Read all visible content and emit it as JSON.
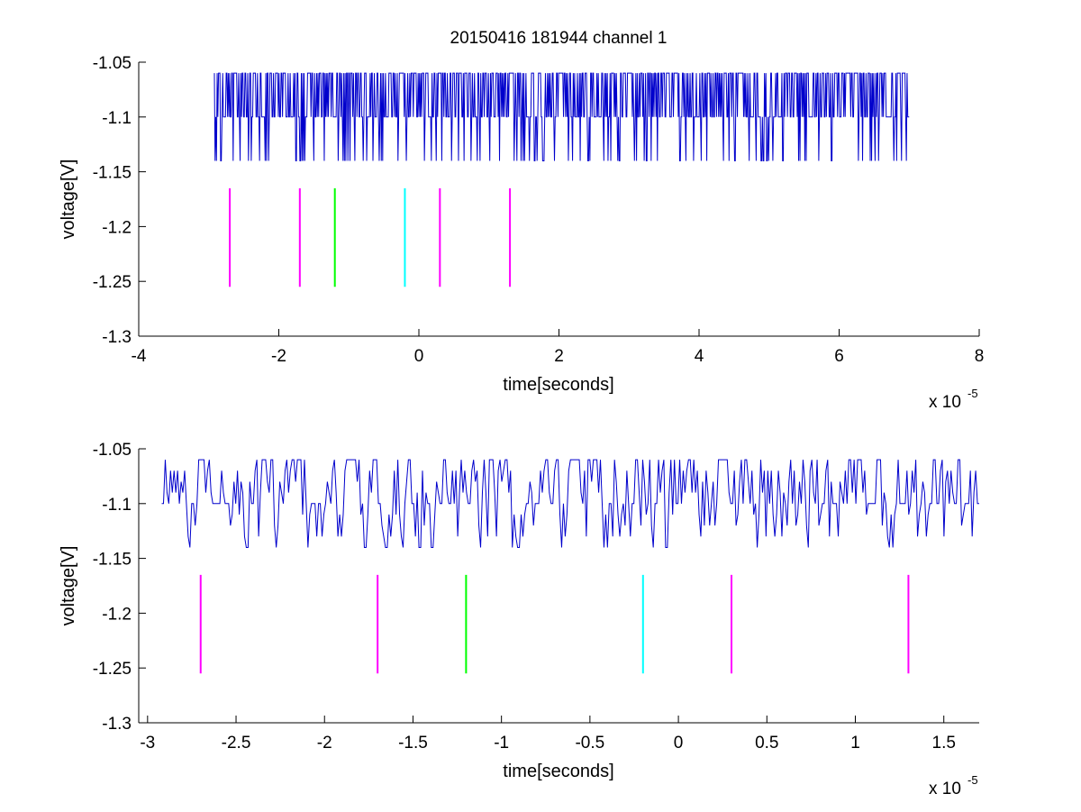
{
  "title": "20150416 181944 channel 1",
  "chart_data": [
    {
      "type": "line",
      "xlabel": "time[seconds]",
      "ylabel": "voltage[V]",
      "x_exponent_label": "x 10",
      "x_exponent": "-5",
      "xlim": [
        -4,
        8
      ],
      "ylim": [
        -1.3,
        -1.05
      ],
      "xticks": [
        -4,
        -2,
        0,
        2,
        4,
        6,
        8
      ],
      "xtick_labels": [
        "-4",
        "-2",
        "0",
        "2",
        "4",
        "6",
        "8"
      ],
      "yticks": [
        -1.05,
        -1.1,
        -1.15,
        -1.2,
        -1.25,
        -1.3
      ],
      "ytick_labels": [
        "-1.05",
        "-1.1",
        "-1.15",
        "-1.2",
        "-1.25",
        "-1.3"
      ],
      "grid": false,
      "signal": {
        "color": "#0000cc",
        "x_start": -2.92,
        "x_end": 7.0,
        "n_points": 1000,
        "levels": [
          -1.06,
          -1.1,
          -1.14
        ],
        "base": -1.1,
        "seed": 7
      },
      "markers": [
        {
          "x": -2.7,
          "y_range": [
            -1.255,
            -1.165
          ],
          "color": "#ff00ff"
        },
        {
          "x": -1.7,
          "y_range": [
            -1.255,
            -1.165
          ],
          "color": "#ff00ff"
        },
        {
          "x": -1.2,
          "y_range": [
            -1.255,
            -1.165
          ],
          "color": "#00ff00"
        },
        {
          "x": -0.2,
          "y_range": [
            -1.255,
            -1.165
          ],
          "color": "#00ffff"
        },
        {
          "x": 0.3,
          "y_range": [
            -1.255,
            -1.165
          ],
          "color": "#ff00ff"
        },
        {
          "x": 1.3,
          "y_range": [
            -1.255,
            -1.165
          ],
          "color": "#ff00ff"
        }
      ]
    },
    {
      "type": "line",
      "xlabel": "time[seconds]",
      "ylabel": "voltage[V]",
      "x_exponent_label": "x 10",
      "x_exponent": "-5",
      "xlim": [
        -3.05,
        1.7
      ],
      "ylim": [
        -1.3,
        -1.05
      ],
      "xticks": [
        -3,
        -2.5,
        -2,
        -1.5,
        -1,
        -0.5,
        0,
        0.5,
        1,
        1.5
      ],
      "xtick_labels": [
        "-3",
        "-2.5",
        "-2",
        "-1.5",
        "-1",
        "-0.5",
        "0",
        "0.5",
        "1",
        "1.5"
      ],
      "yticks": [
        -1.05,
        -1.1,
        -1.15,
        -1.2,
        -1.25,
        -1.3
      ],
      "ytick_labels": [
        "-1.05",
        "-1.1",
        "-1.15",
        "-1.2",
        "-1.25",
        "-1.3"
      ],
      "grid": false,
      "signal": {
        "color": "#0000cc",
        "x_start": -2.92,
        "x_end": 1.7,
        "n_points": 465,
        "levels": [
          -1.06,
          -1.07,
          -1.08,
          -1.09,
          -1.1,
          -1.11,
          -1.12,
          -1.13,
          -1.14
        ],
        "base": -1.1,
        "seed": 11
      },
      "markers": [
        {
          "x": -2.7,
          "y_range": [
            -1.255,
            -1.165
          ],
          "color": "#ff00ff"
        },
        {
          "x": -1.7,
          "y_range": [
            -1.255,
            -1.165
          ],
          "color": "#ff00ff"
        },
        {
          "x": -1.2,
          "y_range": [
            -1.255,
            -1.165
          ],
          "color": "#00ff00"
        },
        {
          "x": -0.2,
          "y_range": [
            -1.255,
            -1.165
          ],
          "color": "#00ffff"
        },
        {
          "x": 0.3,
          "y_range": [
            -1.255,
            -1.165
          ],
          "color": "#ff00ff"
        },
        {
          "x": 1.3,
          "y_range": [
            -1.255,
            -1.165
          ],
          "color": "#ff00ff"
        }
      ]
    }
  ]
}
